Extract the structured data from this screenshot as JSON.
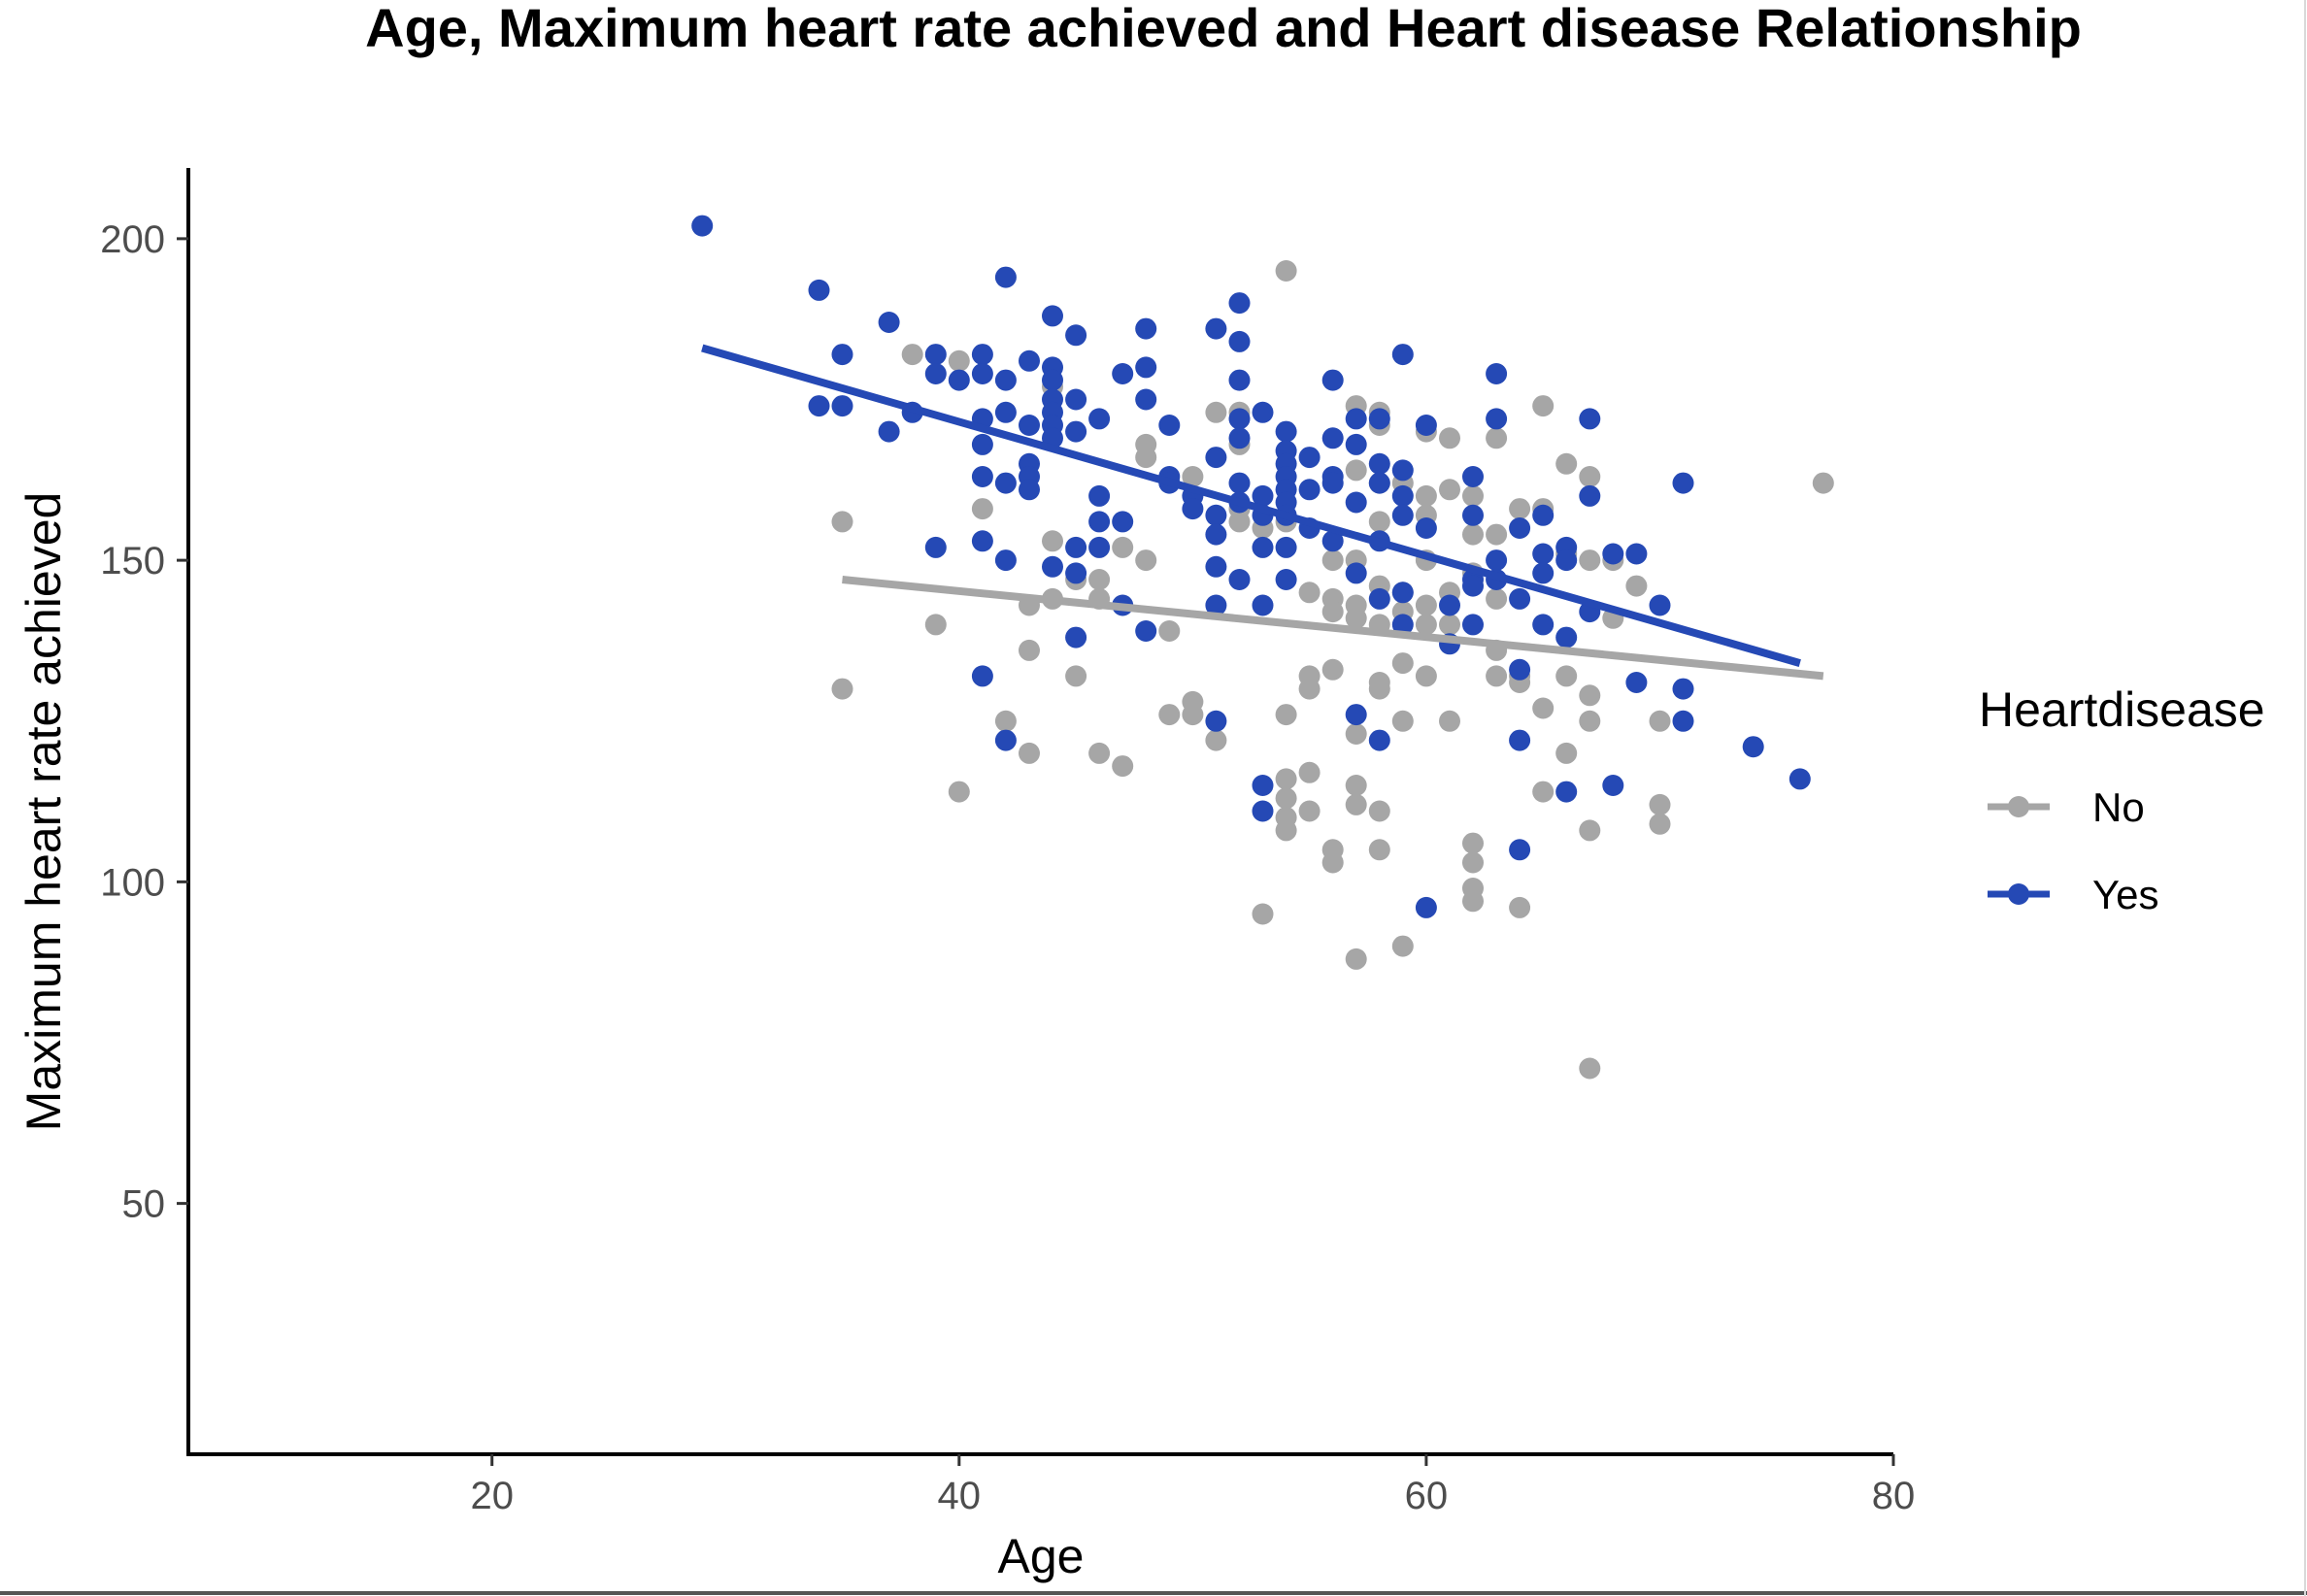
{
  "chart_data": {
    "type": "scatter",
    "title": "Age, Maximum heart rate achieved and Heart disease Relationship",
    "xlabel": "Age",
    "ylabel": "Maximum heart rate achieved",
    "xlim": [
      7,
      80
    ],
    "ylim": [
      11,
      211
    ],
    "x_ticks": [
      20,
      40,
      60,
      80
    ],
    "y_ticks": [
      50,
      100,
      150,
      200
    ],
    "grid": false,
    "legend": {
      "title": "Heartdisease",
      "position": "right"
    },
    "series": [
      {
        "name": "No",
        "color": "#a6a6a6",
        "trend": [
          [
            35,
            147
          ],
          [
            77,
            132
          ]
        ],
        "points": [
          [
            35,
            156
          ],
          [
            35,
            130
          ],
          [
            38,
            182
          ],
          [
            39,
            140
          ],
          [
            40,
            181
          ],
          [
            40,
            114
          ],
          [
            41,
            158
          ],
          [
            42,
            125
          ],
          [
            43,
            136
          ],
          [
            43,
            120
          ],
          [
            43,
            143
          ],
          [
            44,
            153
          ],
          [
            44,
            144
          ],
          [
            44,
            177
          ],
          [
            45,
            147
          ],
          [
            45,
            132
          ],
          [
            46,
            147
          ],
          [
            46,
            144
          ],
          [
            46,
            120
          ],
          [
            47,
            152
          ],
          [
            47,
            118
          ],
          [
            48,
            168
          ],
          [
            48,
            166
          ],
          [
            48,
            150
          ],
          [
            49,
            139
          ],
          [
            49,
            126
          ],
          [
            50,
            163
          ],
          [
            50,
            128
          ],
          [
            50,
            126
          ],
          [
            51,
            173
          ],
          [
            51,
            122
          ],
          [
            52,
            168
          ],
          [
            52,
            173
          ],
          [
            52,
            156
          ],
          [
            52,
            158
          ],
          [
            53,
            155
          ],
          [
            53,
            95
          ],
          [
            54,
            195
          ],
          [
            54,
            126
          ],
          [
            54,
            116
          ],
          [
            54,
            113
          ],
          [
            54,
            110
          ],
          [
            54,
            108
          ],
          [
            54,
            156
          ],
          [
            55,
            145
          ],
          [
            55,
            132
          ],
          [
            55,
            130
          ],
          [
            55,
            117
          ],
          [
            55,
            111
          ],
          [
            56,
            105
          ],
          [
            56,
            103
          ],
          [
            56,
            133
          ],
          [
            56,
            144
          ],
          [
            56,
            142
          ],
          [
            56,
            150
          ],
          [
            57,
            174
          ],
          [
            57,
            164
          ],
          [
            57,
            150
          ],
          [
            57,
            143
          ],
          [
            57,
            141
          ],
          [
            57,
            123
          ],
          [
            57,
            115
          ],
          [
            57,
            112
          ],
          [
            57,
            88
          ],
          [
            58,
            173
          ],
          [
            58,
            171
          ],
          [
            58,
            162
          ],
          [
            58,
            156
          ],
          [
            58,
            146
          ],
          [
            58,
            131
          ],
          [
            58,
            130
          ],
          [
            58,
            111
          ],
          [
            58,
            105
          ],
          [
            58,
            140
          ],
          [
            59,
            142
          ],
          [
            59,
            134
          ],
          [
            59,
            125
          ],
          [
            59,
            90
          ],
          [
            59,
            162
          ],
          [
            59,
            145
          ],
          [
            60,
            170
          ],
          [
            60,
            160
          ],
          [
            60,
            157
          ],
          [
            60,
            150
          ],
          [
            60,
            143
          ],
          [
            60,
            140
          ],
          [
            60,
            132
          ],
          [
            61,
            169
          ],
          [
            61,
            161
          ],
          [
            61,
            145
          ],
          [
            61,
            140
          ],
          [
            61,
            125
          ],
          [
            62,
            160
          ],
          [
            62,
            154
          ],
          [
            62,
            148
          ],
          [
            62,
            106
          ],
          [
            62,
            103
          ],
          [
            62,
            99
          ],
          [
            62,
            97
          ],
          [
            63,
            169
          ],
          [
            63,
            154
          ],
          [
            63,
            144
          ],
          [
            63,
            132
          ],
          [
            63,
            136
          ],
          [
            64,
            158
          ],
          [
            64,
            132
          ],
          [
            64,
            131
          ],
          [
            64,
            96
          ],
          [
            65,
            174
          ],
          [
            65,
            158
          ],
          [
            65,
            127
          ],
          [
            65,
            114
          ],
          [
            66,
            165
          ],
          [
            66,
            132
          ],
          [
            66,
            120
          ],
          [
            66,
            151
          ],
          [
            67,
            163
          ],
          [
            67,
            150
          ],
          [
            67,
            129
          ],
          [
            67,
            125
          ],
          [
            67,
            108
          ],
          [
            67,
            71
          ],
          [
            68,
            150
          ],
          [
            68,
            141
          ],
          [
            69,
            146
          ],
          [
            70,
            125
          ],
          [
            70,
            112
          ],
          [
            70,
            109
          ],
          [
            77,
            162
          ]
        ]
      },
      {
        "name": "Yes",
        "color": "#2549b5",
        "trend": [
          [
            29,
            183
          ],
          [
            76,
            134
          ]
        ],
        "points": [
          [
            29,
            202
          ],
          [
            34,
            192
          ],
          [
            34,
            174
          ],
          [
            35,
            182
          ],
          [
            35,
            174
          ],
          [
            37,
            187
          ],
          [
            37,
            170
          ],
          [
            38,
            173
          ],
          [
            39,
            182
          ],
          [
            39,
            179
          ],
          [
            39,
            152
          ],
          [
            40,
            178
          ],
          [
            41,
            182
          ],
          [
            41,
            179
          ],
          [
            41,
            172
          ],
          [
            41,
            168
          ],
          [
            41,
            163
          ],
          [
            41,
            153
          ],
          [
            41,
            132
          ],
          [
            42,
            194
          ],
          [
            42,
            178
          ],
          [
            42,
            173
          ],
          [
            42,
            162
          ],
          [
            42,
            150
          ],
          [
            42,
            122
          ],
          [
            43,
            181
          ],
          [
            43,
            171
          ],
          [
            43,
            165
          ],
          [
            43,
            163
          ],
          [
            43,
            161
          ],
          [
            44,
            188
          ],
          [
            44,
            180
          ],
          [
            44,
            178
          ],
          [
            44,
            175
          ],
          [
            44,
            173
          ],
          [
            44,
            171
          ],
          [
            44,
            169
          ],
          [
            44,
            149
          ],
          [
            45,
            185
          ],
          [
            45,
            175
          ],
          [
            45,
            170
          ],
          [
            45,
            152
          ],
          [
            45,
            148
          ],
          [
            45,
            138
          ],
          [
            46,
            172
          ],
          [
            46,
            160
          ],
          [
            46,
            156
          ],
          [
            46,
            152
          ],
          [
            47,
            179
          ],
          [
            47,
            156
          ],
          [
            47,
            143
          ],
          [
            48,
            186
          ],
          [
            48,
            180
          ],
          [
            48,
            175
          ],
          [
            48,
            139
          ],
          [
            49,
            171
          ],
          [
            49,
            163
          ],
          [
            49,
            162
          ],
          [
            50,
            160
          ],
          [
            50,
            158
          ],
          [
            51,
            186
          ],
          [
            51,
            166
          ],
          [
            51,
            157
          ],
          [
            51,
            154
          ],
          [
            51,
            149
          ],
          [
            51,
            143
          ],
          [
            51,
            125
          ],
          [
            52,
            190
          ],
          [
            52,
            184
          ],
          [
            52,
            178
          ],
          [
            52,
            172
          ],
          [
            52,
            169
          ],
          [
            52,
            162
          ],
          [
            52,
            159
          ],
          [
            52,
            147
          ],
          [
            53,
            173
          ],
          [
            53,
            160
          ],
          [
            53,
            157
          ],
          [
            53,
            152
          ],
          [
            53,
            143
          ],
          [
            53,
            115
          ],
          [
            53,
            111
          ],
          [
            54,
            170
          ],
          [
            54,
            167
          ],
          [
            54,
            165
          ],
          [
            54,
            163
          ],
          [
            54,
            161
          ],
          [
            54,
            159
          ],
          [
            54,
            157
          ],
          [
            54,
            152
          ],
          [
            54,
            147
          ],
          [
            55,
            166
          ],
          [
            55,
            161
          ],
          [
            55,
            155
          ],
          [
            56,
            178
          ],
          [
            56,
            169
          ],
          [
            56,
            163
          ],
          [
            56,
            162
          ],
          [
            56,
            153
          ],
          [
            57,
            172
          ],
          [
            57,
            168
          ],
          [
            57,
            159
          ],
          [
            57,
            148
          ],
          [
            57,
            126
          ],
          [
            58,
            172
          ],
          [
            58,
            165
          ],
          [
            58,
            162
          ],
          [
            58,
            153
          ],
          [
            58,
            144
          ],
          [
            58,
            122
          ],
          [
            59,
            182
          ],
          [
            59,
            164
          ],
          [
            59,
            160
          ],
          [
            59,
            157
          ],
          [
            59,
            145
          ],
          [
            59,
            140
          ],
          [
            60,
            171
          ],
          [
            60,
            155
          ],
          [
            60,
            96
          ],
          [
            61,
            137
          ],
          [
            61,
            143
          ],
          [
            62,
            163
          ],
          [
            62,
            157
          ],
          [
            62,
            147
          ],
          [
            62,
            146
          ],
          [
            62,
            140
          ],
          [
            63,
            179
          ],
          [
            63,
            172
          ],
          [
            63,
            150
          ],
          [
            63,
            147
          ],
          [
            64,
            155
          ],
          [
            64,
            144
          ],
          [
            64,
            133
          ],
          [
            64,
            122
          ],
          [
            64,
            105
          ],
          [
            65,
            157
          ],
          [
            65,
            151
          ],
          [
            65,
            148
          ],
          [
            65,
            140
          ],
          [
            66,
            152
          ],
          [
            66,
            150
          ],
          [
            66,
            138
          ],
          [
            66,
            114
          ],
          [
            67,
            172
          ],
          [
            67,
            160
          ],
          [
            67,
            142
          ],
          [
            68,
            151
          ],
          [
            68,
            115
          ],
          [
            69,
            151
          ],
          [
            69,
            131
          ],
          [
            70,
            143
          ],
          [
            71,
            162
          ],
          [
            71,
            130
          ],
          [
            71,
            125
          ],
          [
            74,
            121
          ],
          [
            76,
            116
          ]
        ]
      }
    ]
  }
}
